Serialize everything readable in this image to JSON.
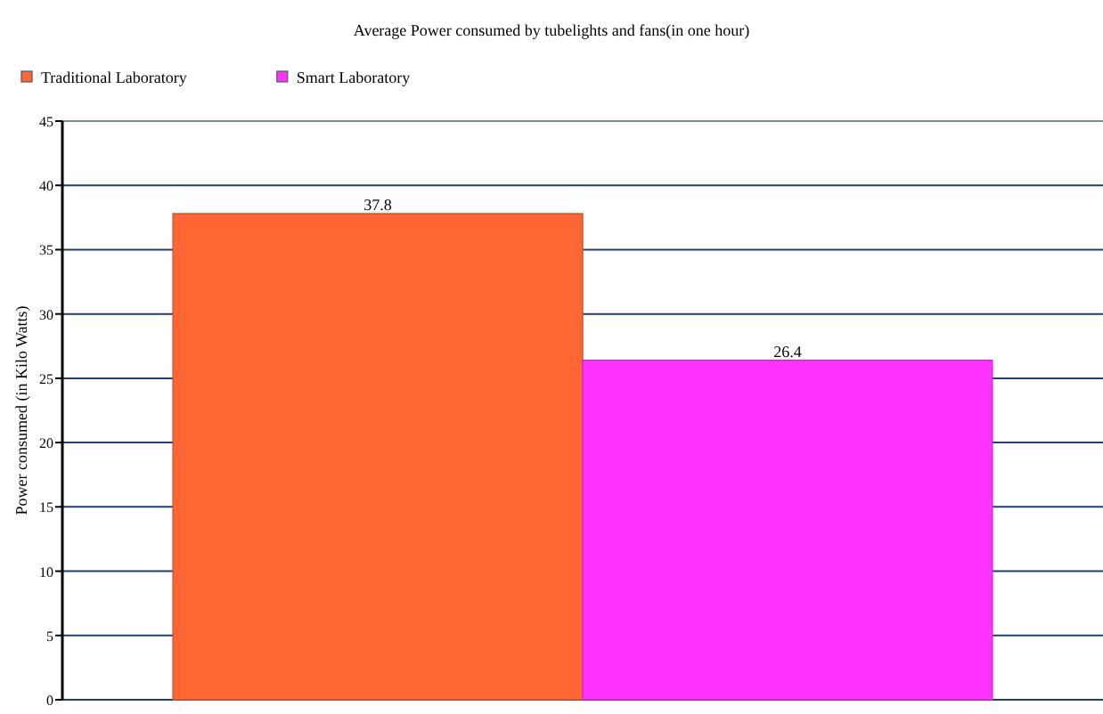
{
  "chart_data": {
    "type": "bar",
    "title": "Average Power consumed by tubelights and fans(in one hour)",
    "ylabel": "Power consumed (in Kilo Watts)",
    "categories": [
      null
    ],
    "series": [
      {
        "name": "Traditional Laboratory",
        "color": "#ff6633",
        "values": [
          37.8
        ]
      },
      {
        "name": "Smart Laboratory",
        "color": "#ff33ff",
        "values": [
          26.4
        ]
      }
    ],
    "ylim": [
      0,
      45
    ],
    "yticks": [
      0,
      5,
      10,
      15,
      20,
      25,
      30,
      35,
      40,
      45
    ],
    "grid": "y",
    "legend": "top left",
    "data_labels": true
  }
}
